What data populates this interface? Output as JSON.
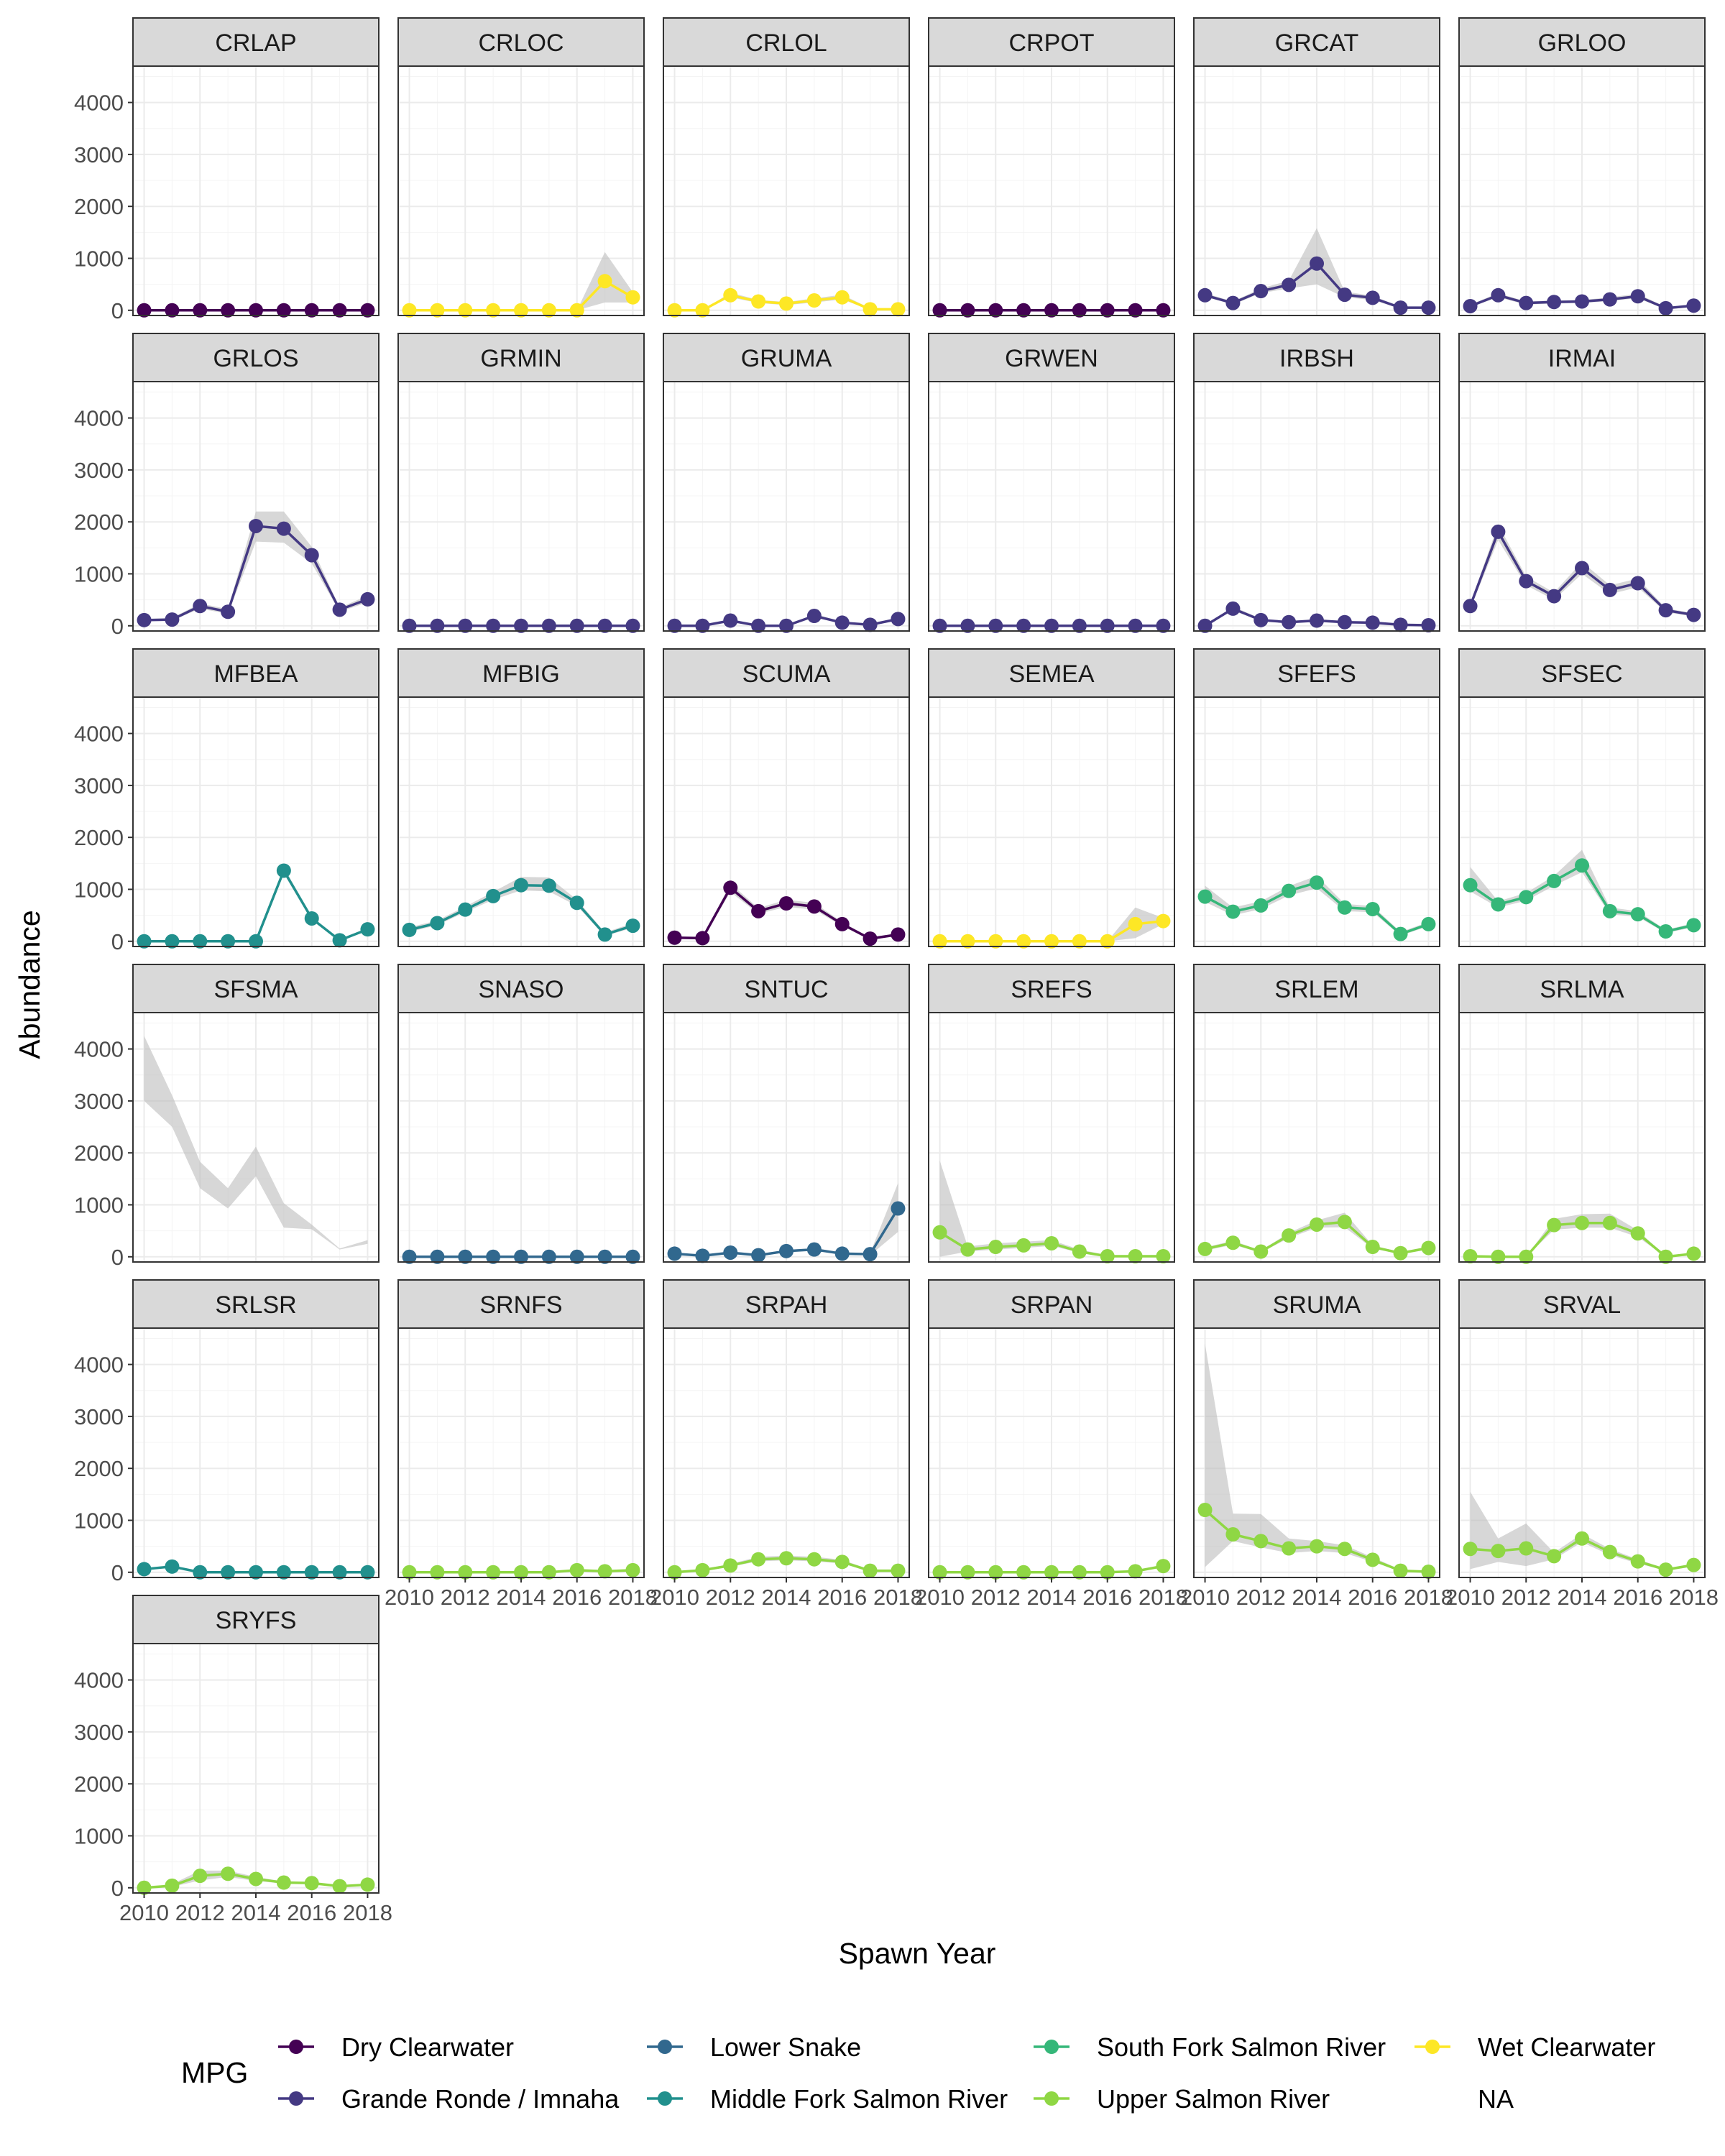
{
  "chart_data": {
    "type": "line",
    "facet_layout": "6 columns, free x per bottom panel, shared y",
    "xlabel": "Spawn Year",
    "ylabel": "Abundance",
    "x": [
      2010,
      2011,
      2012,
      2013,
      2014,
      2015,
      2016,
      2017,
      2018
    ],
    "x_ticks": [
      "2010",
      "2012",
      "2014",
      "2016",
      "2018"
    ],
    "y_ticks": [
      "0",
      "1000",
      "2000",
      "3000",
      "4000"
    ],
    "xlim": [
      2009.6,
      2018.4
    ],
    "ylim": [
      -100,
      4700
    ],
    "grid": true,
    "legend": {
      "title": "MPG",
      "position": "bottom",
      "items": [
        {
          "name": "Dry Clearwater",
          "color": "#440154"
        },
        {
          "name": "Grande Ronde / Imnaha",
          "color": "#443983"
        },
        {
          "name": "Lower Snake",
          "color": "#31688e"
        },
        {
          "name": "Middle Fork Salmon River",
          "color": "#21908d"
        },
        {
          "name": "South Fork Salmon River",
          "color": "#35b779"
        },
        {
          "name": "Upper Salmon River",
          "color": "#8fd744"
        },
        {
          "name": "Wet Clearwater",
          "color": "#fde725"
        },
        {
          "name": "NA",
          "color": ""
        }
      ]
    },
    "panels": [
      {
        "name": "CRLAP",
        "mpg": "Dry Clearwater",
        "values": [
          0,
          0,
          0,
          0,
          0,
          0,
          0,
          0,
          0
        ],
        "lower": [
          0,
          0,
          0,
          0,
          0,
          0,
          0,
          0,
          0
        ],
        "upper": [
          0,
          0,
          0,
          0,
          0,
          0,
          0,
          0,
          0
        ]
      },
      {
        "name": "CRLOC",
        "mpg": "Wet Clearwater",
        "values": [
          0,
          0,
          0,
          0,
          0,
          0,
          0,
          560,
          250
        ],
        "lower": [
          0,
          0,
          0,
          0,
          0,
          0,
          0,
          150,
          150
        ],
        "upper": [
          0,
          0,
          0,
          0,
          0,
          0,
          0,
          1120,
          350
        ]
      },
      {
        "name": "CRLOL",
        "mpg": "Wet Clearwater",
        "values": [
          0,
          0,
          290,
          170,
          130,
          190,
          250,
          20,
          20
        ],
        "lower": [
          0,
          0,
          250,
          140,
          100,
          150,
          210,
          10,
          10
        ],
        "upper": [
          0,
          0,
          340,
          200,
          160,
          230,
          300,
          40,
          40
        ]
      },
      {
        "name": "CRPOT",
        "mpg": "Dry Clearwater",
        "values": [
          0,
          0,
          0,
          0,
          0,
          0,
          0,
          0,
          0
        ],
        "lower": [
          0,
          0,
          0,
          0,
          0,
          0,
          0,
          0,
          0
        ],
        "upper": [
          0,
          0,
          0,
          0,
          0,
          0,
          0,
          0,
          0
        ]
      },
      {
        "name": "GRCAT",
        "mpg": "Grande Ronde / Imnaha",
        "values": [
          290,
          140,
          370,
          490,
          900,
          300,
          240,
          50,
          50
        ],
        "lower": [
          260,
          110,
          330,
          420,
          500,
          250,
          200,
          30,
          30
        ],
        "upper": [
          330,
          170,
          420,
          570,
          1580,
          360,
          280,
          70,
          70
        ]
      },
      {
        "name": "GRLOO",
        "mpg": "Grande Ronde / Imnaha",
        "values": [
          80,
          290,
          140,
          160,
          170,
          210,
          270,
          40,
          90
        ],
        "lower": [
          60,
          250,
          110,
          130,
          140,
          180,
          230,
          20,
          60
        ],
        "upper": [
          110,
          330,
          170,
          190,
          200,
          250,
          320,
          60,
          120
        ]
      },
      {
        "name": "GRLOS",
        "mpg": "Grande Ronde / Imnaha",
        "values": [
          110,
          120,
          380,
          270,
          1920,
          1870,
          1360,
          310,
          510
        ],
        "lower": [
          90,
          100,
          330,
          230,
          1620,
          1600,
          1200,
          270,
          450
        ],
        "upper": [
          130,
          150,
          430,
          320,
          2200,
          2200,
          1520,
          350,
          580
        ]
      },
      {
        "name": "GRMIN",
        "mpg": "Grande Ronde / Imnaha",
        "values": [
          0,
          0,
          0,
          0,
          0,
          0,
          0,
          0,
          0
        ],
        "lower": [
          0,
          0,
          0,
          0,
          0,
          0,
          0,
          0,
          0
        ],
        "upper": [
          0,
          0,
          0,
          0,
          0,
          0,
          0,
          0,
          0
        ]
      },
      {
        "name": "GRUMA",
        "mpg": "Grande Ronde / Imnaha",
        "values": [
          0,
          0,
          100,
          0,
          0,
          190,
          60,
          20,
          130
        ],
        "lower": [
          0,
          0,
          80,
          0,
          0,
          160,
          40,
          10,
          100
        ],
        "upper": [
          0,
          0,
          130,
          0,
          0,
          230,
          80,
          30,
          160
        ]
      },
      {
        "name": "GRWEN",
        "mpg": "Grande Ronde / Imnaha",
        "values": [
          0,
          0,
          0,
          0,
          0,
          0,
          0,
          0,
          0
        ],
        "lower": [
          0,
          0,
          0,
          0,
          0,
          0,
          0,
          0,
          0
        ],
        "upper": [
          0,
          0,
          0,
          0,
          0,
          0,
          0,
          0,
          0
        ]
      },
      {
        "name": "IRBSH",
        "mpg": "Grande Ronde / Imnaha",
        "values": [
          0,
          330,
          110,
          70,
          100,
          70,
          60,
          20,
          10
        ],
        "lower": [
          0,
          290,
          90,
          50,
          80,
          50,
          40,
          10,
          0
        ],
        "upper": [
          0,
          370,
          140,
          90,
          130,
          90,
          80,
          30,
          20
        ]
      },
      {
        "name": "IRMAI",
        "mpg": "Grande Ronde / Imnaha",
        "values": [
          380,
          1810,
          860,
          570,
          1110,
          690,
          820,
          300,
          210
        ],
        "lower": [
          330,
          1650,
          780,
          500,
          1000,
          610,
          740,
          260,
          180
        ],
        "upper": [
          430,
          1950,
          950,
          640,
          1230,
          780,
          910,
          340,
          240
        ]
      },
      {
        "name": "MFBEA",
        "mpg": "Middle Fork Salmon River",
        "values": [
          0,
          0,
          0,
          0,
          0,
          1360,
          440,
          20,
          230
        ],
        "lower": [
          0,
          0,
          0,
          0,
          0,
          1300,
          400,
          10,
          200
        ],
        "upper": [
          0,
          0,
          0,
          0,
          0,
          1420,
          480,
          30,
          260
        ]
      },
      {
        "name": "MFBIG",
        "mpg": "Middle Fork Salmon River",
        "values": [
          220,
          350,
          610,
          870,
          1080,
          1070,
          740,
          130,
          300
        ],
        "lower": [
          180,
          310,
          560,
          800,
          980,
          960,
          680,
          100,
          260
        ],
        "upper": [
          270,
          400,
          670,
          950,
          1240,
          1230,
          800,
          170,
          350
        ]
      },
      {
        "name": "SCUMA",
        "mpg": "Dry Clearwater",
        "values": [
          70,
          60,
          1030,
          580,
          730,
          670,
          330,
          50,
          130
        ],
        "lower": [
          50,
          40,
          950,
          530,
          660,
          610,
          290,
          30,
          100
        ],
        "upper": [
          90,
          80,
          1110,
          640,
          800,
          740,
          370,
          70,
          160
        ]
      },
      {
        "name": "SEMEA",
        "mpg": "Wet Clearwater",
        "values": [
          0,
          0,
          0,
          0,
          0,
          0,
          0,
          330,
          390
        ],
        "lower": [
          0,
          0,
          0,
          0,
          0,
          0,
          0,
          60,
          330
        ],
        "upper": [
          0,
          0,
          0,
          0,
          0,
          0,
          0,
          650,
          450
        ]
      },
      {
        "name": "SFEFS",
        "mpg": "South Fork Salmon River",
        "values": [
          860,
          570,
          690,
          970,
          1130,
          650,
          620,
          140,
          330
        ],
        "lower": [
          760,
          500,
          620,
          880,
          1020,
          580,
          560,
          110,
          290
        ],
        "upper": [
          1070,
          650,
          770,
          1060,
          1260,
          720,
          680,
          180,
          370
        ]
      },
      {
        "name": "SFSEC",
        "mpg": "South Fork Salmon River",
        "values": [
          1080,
          710,
          850,
          1160,
          1460,
          580,
          520,
          190,
          310
        ],
        "lower": [
          960,
          650,
          780,
          1070,
          1330,
          520,
          470,
          160,
          270
        ],
        "upper": [
          1430,
          770,
          930,
          1260,
          1760,
          650,
          580,
          220,
          350
        ]
      },
      {
        "name": "SFSMA",
        "mpg": "NA",
        "values": [],
        "lower": [
          3000,
          2500,
          1320,
          930,
          1550,
          560,
          530,
          140,
          250
        ],
        "upper": [
          4250,
          3110,
          1830,
          1320,
          2120,
          1030,
          620,
          160,
          320
        ]
      },
      {
        "name": "SNASO",
        "mpg": "Lower Snake",
        "values": [
          0,
          0,
          0,
          0,
          0,
          0,
          0,
          0,
          0
        ],
        "lower": [
          0,
          0,
          0,
          0,
          0,
          0,
          0,
          0,
          0
        ],
        "upper": [
          0,
          0,
          0,
          0,
          0,
          0,
          0,
          0,
          0
        ]
      },
      {
        "name": "SNTUC",
        "mpg": "Lower Snake",
        "values": [
          60,
          20,
          80,
          30,
          110,
          140,
          60,
          50,
          930
        ],
        "lower": [
          40,
          10,
          60,
          20,
          90,
          120,
          40,
          30,
          480
        ],
        "upper": [
          80,
          30,
          100,
          50,
          130,
          170,
          80,
          70,
          1420
        ]
      },
      {
        "name": "SREFS",
        "mpg": "Upper Salmon River",
        "values": [
          470,
          140,
          190,
          220,
          260,
          100,
          10,
          10,
          10
        ],
        "lower": [
          0,
          100,
          140,
          170,
          210,
          80,
          0,
          0,
          0
        ],
        "upper": [
          1850,
          200,
          260,
          290,
          320,
          140,
          30,
          20,
          20
        ]
      },
      {
        "name": "SRLEM",
        "mpg": "Upper Salmon River",
        "values": [
          150,
          270,
          100,
          410,
          620,
          670,
          190,
          70,
          170
        ],
        "lower": [
          120,
          230,
          80,
          360,
          560,
          570,
          160,
          50,
          140
        ],
        "upper": [
          180,
          310,
          120,
          460,
          700,
          850,
          220,
          90,
          200
        ]
      },
      {
        "name": "SRLMA",
        "mpg": "Upper Salmon River",
        "values": [
          10,
          0,
          0,
          610,
          650,
          650,
          450,
          0,
          60
        ],
        "lower": [
          0,
          0,
          0,
          520,
          560,
          560,
          380,
          0,
          40
        ],
        "upper": [
          20,
          0,
          0,
          730,
          820,
          830,
          510,
          0,
          80
        ]
      },
      {
        "name": "SRLSR",
        "mpg": "Middle Fork Salmon River",
        "values": [
          60,
          110,
          0,
          0,
          0,
          0,
          0,
          0,
          0
        ],
        "lower": [
          40,
          90,
          0,
          0,
          0,
          0,
          0,
          0,
          0
        ],
        "upper": [
          80,
          130,
          0,
          0,
          0,
          0,
          0,
          0,
          0
        ]
      },
      {
        "name": "SRNFS",
        "mpg": "Upper Salmon River",
        "values": [
          0,
          0,
          0,
          0,
          0,
          0,
          40,
          20,
          40
        ],
        "lower": [
          0,
          0,
          0,
          0,
          0,
          0,
          20,
          10,
          20
        ],
        "upper": [
          0,
          0,
          0,
          0,
          0,
          0,
          60,
          30,
          60
        ]
      },
      {
        "name": "SRPAH",
        "mpg": "Upper Salmon River",
        "values": [
          0,
          40,
          130,
          250,
          270,
          250,
          200,
          30,
          30
        ],
        "lower": [
          0,
          30,
          110,
          210,
          230,
          210,
          170,
          20,
          20
        ],
        "upper": [
          0,
          60,
          160,
          300,
          320,
          300,
          240,
          50,
          50
        ]
      },
      {
        "name": "SRPAN",
        "mpg": "Upper Salmon River",
        "values": [
          0,
          0,
          0,
          0,
          0,
          0,
          0,
          20,
          120
        ],
        "lower": [
          0,
          0,
          0,
          0,
          0,
          0,
          0,
          10,
          90
        ],
        "upper": [
          0,
          0,
          0,
          0,
          0,
          0,
          0,
          30,
          150
        ]
      },
      {
        "name": "SRUMA",
        "mpg": "Upper Salmon River",
        "values": [
          1200,
          730,
          600,
          460,
          500,
          450,
          240,
          30,
          10
        ],
        "lower": [
          100,
          600,
          480,
          370,
          410,
          370,
          200,
          20,
          0
        ],
        "upper": [
          4400,
          1130,
          1120,
          650,
          600,
          520,
          290,
          50,
          20
        ]
      },
      {
        "name": "SRVAL",
        "mpg": "Upper Salmon River",
        "values": [
          450,
          410,
          460,
          310,
          650,
          390,
          210,
          50,
          140
        ],
        "lower": [
          60,
          200,
          120,
          250,
          580,
          330,
          170,
          30,
          110
        ],
        "upper": [
          1550,
          650,
          940,
          380,
          740,
          450,
          250,
          70,
          170
        ]
      },
      {
        "name": "SRYFS",
        "mpg": "Upper Salmon River",
        "values": [
          0,
          40,
          230,
          270,
          170,
          100,
          90,
          30,
          60
        ],
        "lower": [
          0,
          20,
          140,
          210,
          130,
          80,
          70,
          20,
          40
        ],
        "upper": [
          0,
          70,
          330,
          330,
          210,
          120,
          110,
          40,
          80
        ]
      }
    ]
  }
}
